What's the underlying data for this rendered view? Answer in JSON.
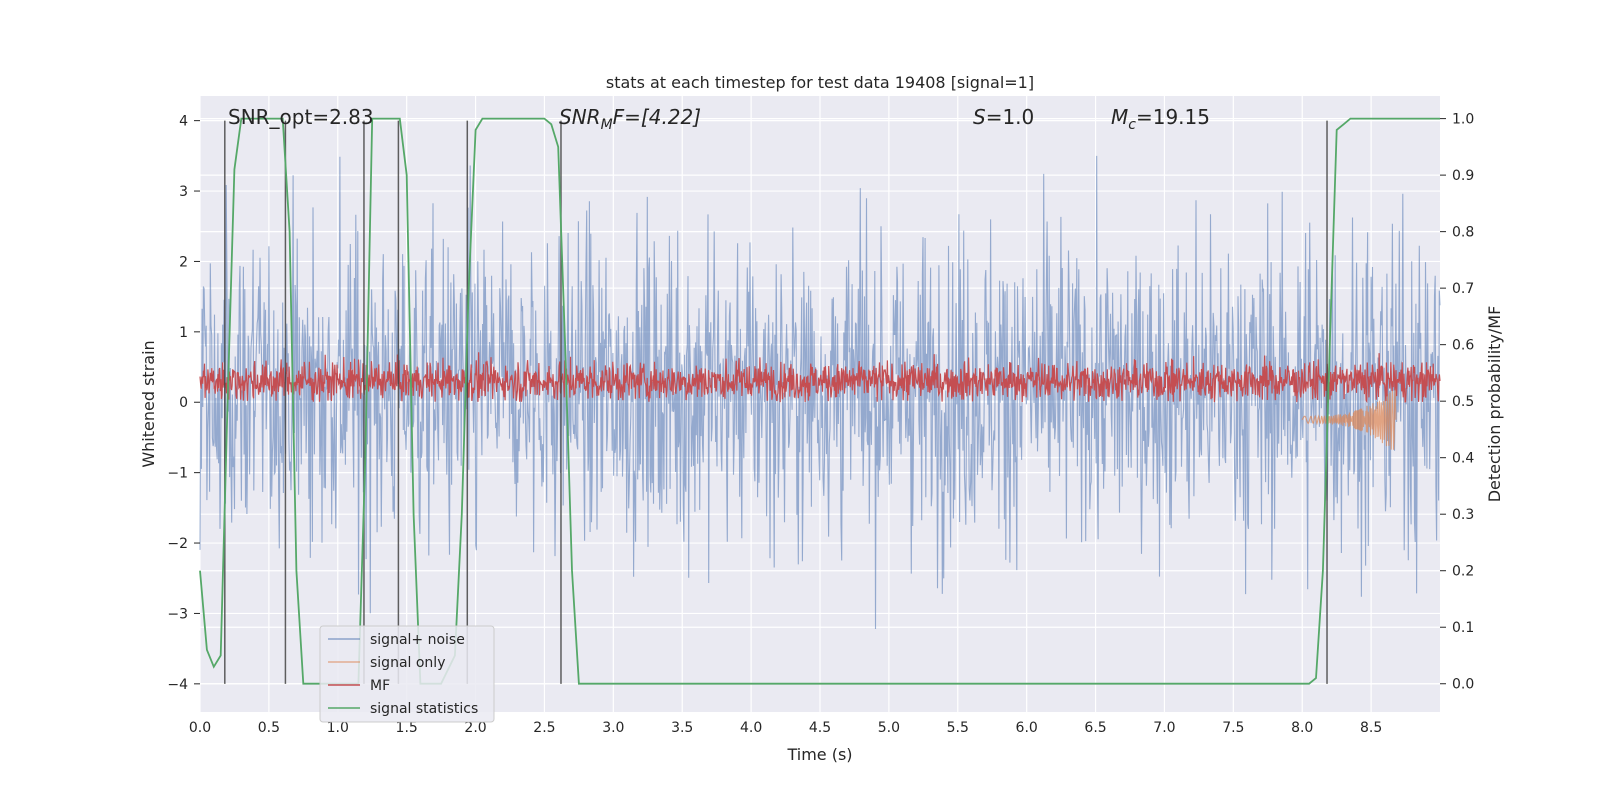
{
  "chart_data": {
    "type": "line",
    "title": "stats at each timestep for test data 19408 [signal=1]",
    "xlabel": "Time (s)",
    "ylabel": "Whitened strain",
    "y2label": "Detection probability/MF",
    "xlim": [
      0.0,
      9.0
    ],
    "ylim": [
      -4.4,
      4.35
    ],
    "y2lim": [
      -0.05,
      1.04
    ],
    "x_ticks": [
      "0.0",
      "0.5",
      "1.0",
      "1.5",
      "2.0",
      "2.5",
      "3.0",
      "3.5",
      "4.0",
      "4.5",
      "5.0",
      "5.5",
      "6.0",
      "6.5",
      "7.0",
      "7.5",
      "8.0",
      "8.5"
    ],
    "y_ticks": [
      "−4",
      "−3",
      "−2",
      "−1",
      "0",
      "1",
      "2",
      "3",
      "4"
    ],
    "y2_ticks": [
      "0.0",
      "0.1",
      "0.2",
      "0.3",
      "0.4",
      "0.5",
      "0.6",
      "0.7",
      "0.8",
      "0.9",
      "1.0"
    ],
    "grid": true,
    "legend_position": "lower-left",
    "annotations": [
      "SNR_opt=2.83",
      "SNR",
      "M",
      "F=[4.22]",
      "S",
      "=1.0",
      "M",
      "c",
      "=19.15"
    ],
    "series": [
      {
        "name": "signal+ noise",
        "color": "#4c72b0",
        "kind": "noise-band",
        "note_y_range": [
          -4.0,
          3.9
        ],
        "typical_envelope": [
          -1.8,
          2.2
        ]
      },
      {
        "name": "signal only",
        "color": "#dd8452",
        "kind": "chirp",
        "x_range": [
          8.0,
          8.68
        ],
        "min": -0.7,
        "max": 0.2
      },
      {
        "name": "MF",
        "color": "#c44e52",
        "kind": "noise-band",
        "typical_range": [
          0.0,
          0.75
        ],
        "max": 1.0
      },
      {
        "name": "signal statistics",
        "color": "#55a868",
        "kind": "probability",
        "x": [
          0.0,
          0.05,
          0.1,
          0.15,
          0.2,
          0.25,
          0.3,
          0.35,
          0.6,
          0.65,
          0.7,
          0.75,
          1.15,
          1.2,
          1.25,
          1.3,
          1.45,
          1.5,
          1.55,
          1.6,
          1.75,
          1.85,
          1.9,
          1.95,
          2.0,
          2.05,
          2.5,
          2.55,
          2.6,
          2.65,
          2.7,
          2.75,
          2.8,
          8.05,
          8.1,
          8.15,
          8.2,
          8.25,
          8.3,
          8.35,
          8.45,
          8.55,
          9.0
        ],
        "values": [
          0.2,
          0.06,
          0.03,
          0.05,
          0.5,
          0.91,
          1.0,
          1.0,
          1.0,
          0.8,
          0.2,
          0.0,
          0.0,
          0.4,
          1.0,
          1.0,
          1.0,
          0.9,
          0.3,
          0.0,
          0.0,
          0.05,
          0.3,
          0.7,
          0.98,
          1.0,
          1.0,
          0.99,
          0.95,
          0.6,
          0.2,
          0.0,
          0.0,
          0.0,
          0.01,
          0.2,
          0.6,
          0.98,
          0.99,
          1.0,
          1.0,
          1.0,
          1.0
        ]
      }
    ],
    "vertical_markers_x": [
      0.18,
      0.62,
      1.19,
      1.44,
      1.94,
      2.62,
      8.18
    ]
  }
}
